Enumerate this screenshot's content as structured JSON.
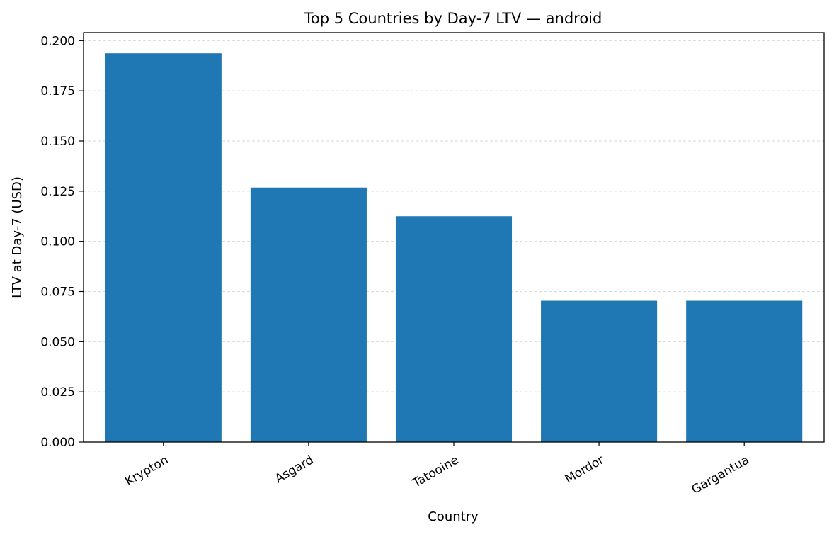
{
  "chart_data": {
    "type": "bar",
    "title": "Top 5 Countries by Day-7 LTV — android",
    "xlabel": "Country",
    "ylabel": "LTV at Day-7 (USD)",
    "categories": [
      "Krypton",
      "Asgard",
      "Tatooine",
      "Mordor",
      "Gargantua"
    ],
    "values": [
      0.1937,
      0.1268,
      0.1125,
      0.0704,
      0.0704
    ],
    "ylim": [
      0,
      0.204
    ],
    "yticks": [
      0.0,
      0.025,
      0.05,
      0.075,
      0.1,
      0.125,
      0.15,
      0.175,
      0.2
    ],
    "ytick_labels": [
      "0.000",
      "0.025",
      "0.050",
      "0.075",
      "0.100",
      "0.125",
      "0.150",
      "0.175",
      "0.200"
    ],
    "grid": "y-dashed",
    "legend": "none",
    "bar_color": "#1f77b4",
    "grid_color": "#d9d9d9",
    "axis_color": "#000000"
  }
}
